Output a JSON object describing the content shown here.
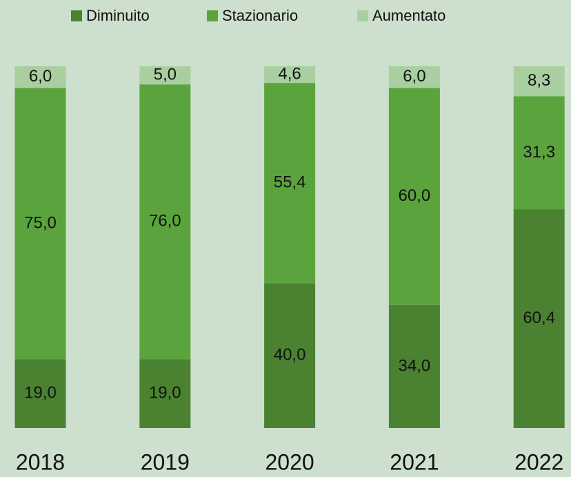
{
  "chart_data": {
    "type": "stacked_bar",
    "categories": [
      "2018",
      "2019",
      "2020",
      "2021",
      "2022"
    ],
    "series": [
      {
        "name": "Diminuito",
        "color": "#4a8232",
        "values": [
          19,
          19,
          40,
          34,
          60.4
        ],
        "value_labels": [
          "19,0",
          "19,0",
          "40,0",
          "34,0",
          "60,4"
        ]
      },
      {
        "name": "Stazionario",
        "color": "#5ba43d",
        "values": [
          75,
          76,
          55.4,
          60,
          31.3
        ],
        "value_labels": [
          "75,0",
          "76,0",
          "55,4",
          "60,0",
          "31,3"
        ]
      },
      {
        "name": "Aumentato",
        "color": "#a9cfa0",
        "values": [
          6,
          5,
          4.6,
          6,
          8.3
        ],
        "value_labels": [
          "6,0",
          "5,0",
          "4,6",
          "6,0",
          "8,3"
        ]
      }
    ],
    "ylim": [
      0,
      100
    ],
    "legend": "top"
  }
}
